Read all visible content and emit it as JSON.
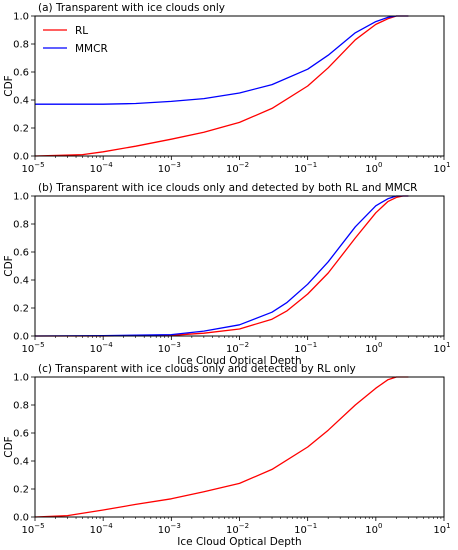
{
  "chart_data": [
    {
      "type": "line",
      "title": "(a) Transparent with ice clouds only",
      "xlabel": "",
      "ylabel": "CDF",
      "xscale": "log",
      "xlim": [
        1e-05,
        10
      ],
      "ylim": [
        0,
        1
      ],
      "grid": false,
      "legend": "top-left",
      "x_ticks": [
        1e-05,
        0.0001,
        0.001,
        0.01,
        0.1,
        1,
        10
      ],
      "x_tick_labels": [
        {
          "base": "10",
          "exp": "−5"
        },
        {
          "base": "10",
          "exp": "−4"
        },
        {
          "base": "10",
          "exp": "−3"
        },
        {
          "base": "10",
          "exp": "−2"
        },
        {
          "base": "10",
          "exp": "−1"
        },
        {
          "base": "10",
          "exp": "0"
        },
        {
          "base": "10",
          "exp": "1"
        }
      ],
      "y_ticks": [
        "0.0",
        "0.2",
        "0.4",
        "0.6",
        "0.8",
        "1.0"
      ],
      "series": [
        {
          "name": "RL",
          "color": "#ff0000",
          "x": [
            1e-05,
            5e-05,
            0.0001,
            0.0003,
            0.001,
            0.003,
            0.01,
            0.03,
            0.1,
            0.2,
            0.5,
            1,
            1.5,
            2,
            2.5,
            3
          ],
          "y": [
            0,
            0.01,
            0.03,
            0.07,
            0.12,
            0.17,
            0.24,
            0.34,
            0.5,
            0.63,
            0.83,
            0.94,
            0.98,
            1.0,
            1.0,
            1.0
          ]
        },
        {
          "name": "MMCR",
          "color": "#0000ff",
          "x": [
            1e-05,
            0.0001,
            0.0003,
            0.001,
            0.003,
            0.01,
            0.03,
            0.1,
            0.2,
            0.5,
            1,
            1.5,
            2,
            2.5,
            3
          ],
          "y": [
            0.37,
            0.37,
            0.375,
            0.39,
            0.41,
            0.45,
            0.51,
            0.62,
            0.72,
            0.88,
            0.96,
            0.99,
            1.0,
            1.0,
            1.0
          ]
        }
      ]
    },
    {
      "type": "line",
      "title": "(b) Transparent with ice clouds only and detected by both RL and MMCR",
      "xlabel": "Ice Cloud Optical Depth",
      "ylabel": "CDF",
      "xscale": "log",
      "xlim": [
        1e-05,
        10
      ],
      "ylim": [
        0,
        1
      ],
      "grid": false,
      "x_ticks": [
        1e-05,
        0.0001,
        0.001,
        0.01,
        0.1,
        1,
        10
      ],
      "x_tick_labels": [
        {
          "base": "10",
          "exp": "−5"
        },
        {
          "base": "10",
          "exp": "−4"
        },
        {
          "base": "10",
          "exp": "−3"
        },
        {
          "base": "10",
          "exp": "−2"
        },
        {
          "base": "10",
          "exp": "−1"
        },
        {
          "base": "10",
          "exp": "0"
        },
        {
          "base": "10",
          "exp": "1"
        }
      ],
      "y_ticks": [
        "0.0",
        "0.2",
        "0.4",
        "0.6",
        "0.8",
        "1.0"
      ],
      "series": [
        {
          "name": "RL",
          "color": "#ff0000",
          "x": [
            1e-05,
            0.0001,
            0.001,
            0.003,
            0.01,
            0.03,
            0.05,
            0.1,
            0.2,
            0.5,
            1,
            1.5,
            2,
            2.5,
            3
          ],
          "y": [
            0,
            0,
            0.005,
            0.02,
            0.05,
            0.12,
            0.18,
            0.3,
            0.45,
            0.7,
            0.88,
            0.96,
            0.99,
            1.0,
            1.0
          ]
        },
        {
          "name": "MMCR",
          "color": "#0000ff",
          "x": [
            1e-05,
            0.0001,
            0.001,
            0.003,
            0.01,
            0.03,
            0.05,
            0.1,
            0.2,
            0.5,
            1,
            1.5,
            2,
            2.5,
            3
          ],
          "y": [
            0,
            0.002,
            0.01,
            0.035,
            0.08,
            0.17,
            0.24,
            0.37,
            0.53,
            0.78,
            0.93,
            0.98,
            1.0,
            1.0,
            1.0
          ]
        }
      ]
    },
    {
      "type": "line",
      "title": "(c) Transparent with ice clouds only and detected by RL only",
      "xlabel": "Ice Cloud Optical Depth",
      "ylabel": "CDF",
      "xscale": "log",
      "xlim": [
        1e-05,
        10
      ],
      "ylim": [
        0,
        1
      ],
      "grid": false,
      "x_ticks": [
        1e-05,
        0.0001,
        0.001,
        0.01,
        0.1,
        1,
        10
      ],
      "x_tick_labels": [
        {
          "base": "10",
          "exp": "−5"
        },
        {
          "base": "10",
          "exp": "−4"
        },
        {
          "base": "10",
          "exp": "−3"
        },
        {
          "base": "10",
          "exp": "−2"
        },
        {
          "base": "10",
          "exp": "−1"
        },
        {
          "base": "10",
          "exp": "0"
        },
        {
          "base": "10",
          "exp": "1"
        }
      ],
      "y_ticks": [
        "0.0",
        "0.2",
        "0.4",
        "0.6",
        "0.8",
        "1.0"
      ],
      "series": [
        {
          "name": "RL",
          "color": "#ff0000",
          "x": [
            1e-05,
            3e-05,
            0.0001,
            0.0003,
            0.001,
            0.003,
            0.01,
            0.03,
            0.1,
            0.2,
            0.5,
            1,
            1.5,
            2,
            2.5,
            3
          ],
          "y": [
            0,
            0.01,
            0.05,
            0.09,
            0.13,
            0.18,
            0.24,
            0.34,
            0.5,
            0.62,
            0.8,
            0.92,
            0.98,
            1.0,
            1.0,
            1.0
          ]
        }
      ]
    }
  ]
}
